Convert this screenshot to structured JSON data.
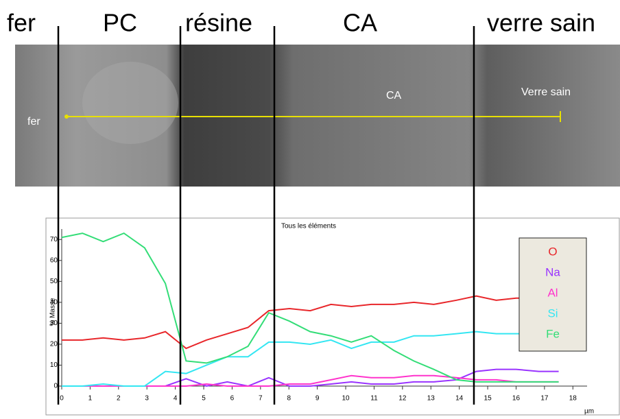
{
  "zones": [
    "fer",
    "PC",
    "résine",
    "CA",
    "verre sain"
  ],
  "image_labels": [
    "fer",
    "CA",
    "Verre sain"
  ],
  "chart_data": {
    "type": "line",
    "title": "Tous les éléments",
    "y_label": "% Masse",
    "x_label": "µm",
    "x": [
      0,
      0.73,
      1.46,
      2.19,
      2.92,
      3.65,
      4.38,
      5.1,
      5.83,
      6.56,
      7.29,
      8.02,
      8.75,
      9.48,
      10.2,
      10.9,
      11.7,
      12.4,
      13.1,
      13.9,
      14.6,
      15.3,
      16,
      16.8,
      17.5
    ],
    "series": [
      {
        "name": "O",
        "color": "#e8262a",
        "values": [
          22,
          22,
          23,
          22,
          23,
          26,
          18,
          22,
          25,
          28,
          36,
          37,
          36,
          39,
          38,
          39,
          39,
          40,
          39,
          41,
          43,
          41,
          42,
          42,
          42
        ]
      },
      {
        "name": "Na",
        "color": "#9933ff",
        "values": [
          0,
          0,
          0,
          0,
          0,
          0,
          3.5,
          0,
          2,
          0,
          4,
          0,
          0,
          1,
          2,
          1,
          1,
          2,
          2,
          3,
          7,
          8,
          8,
          7,
          7
        ]
      },
      {
        "name": "Al",
        "color": "#ff33cc",
        "values": [
          0,
          0,
          0,
          0,
          0,
          0,
          0,
          1,
          0,
          0,
          0,
          1,
          1,
          3,
          5,
          4,
          4,
          5,
          5,
          4,
          3,
          3,
          2,
          2,
          2
        ]
      },
      {
        "name": "Si",
        "color": "#33e6f2",
        "values": [
          0,
          0,
          1,
          0,
          0,
          7,
          6,
          10,
          14,
          14,
          21,
          21,
          20,
          22,
          18,
          21,
          21,
          24,
          24,
          25,
          26,
          25,
          25,
          25,
          25
        ]
      },
      {
        "name": "Fe",
        "color": "#33dd77",
        "values": [
          71,
          73,
          69,
          73,
          66,
          49,
          12,
          11,
          14,
          19,
          35,
          31,
          26,
          24,
          21,
          24,
          17,
          12,
          8,
          3,
          2,
          2,
          2,
          2,
          2
        ]
      }
    ],
    "xlim": [
      0,
      18.5
    ],
    "ylim": [
      0,
      75
    ],
    "xticks": [
      0,
      1,
      2,
      3,
      4,
      5,
      6,
      7,
      8,
      9,
      10,
      11,
      12,
      13,
      14,
      15,
      16,
      17,
      18
    ],
    "yticks": [
      0,
      10,
      20,
      30,
      40,
      50,
      60,
      70
    ],
    "legend": "right"
  }
}
